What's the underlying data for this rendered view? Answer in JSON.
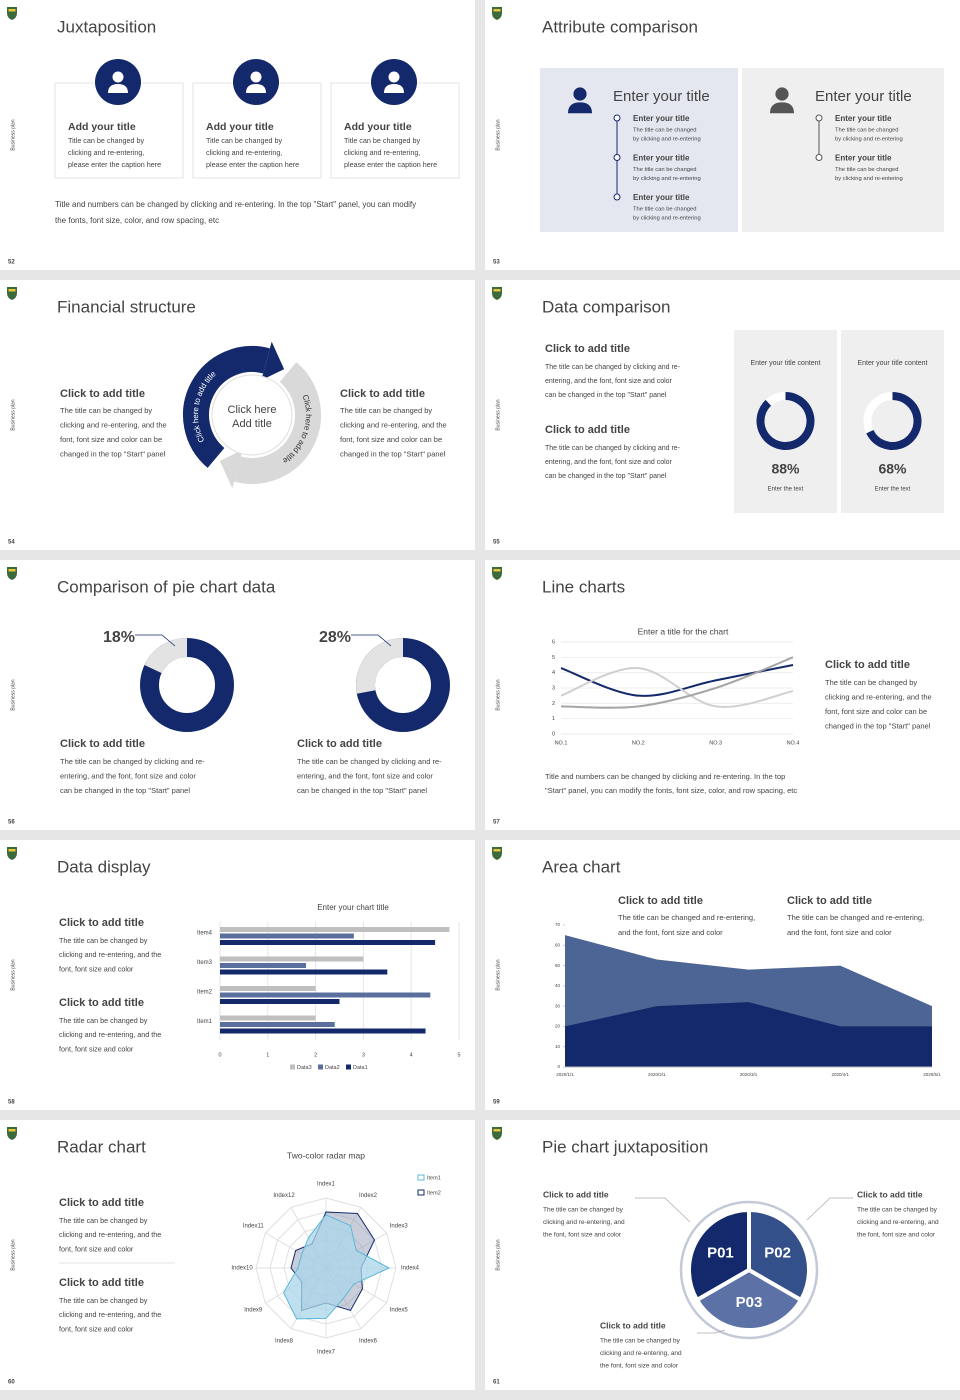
{
  "slides": [
    {
      "number": "52",
      "side_label": "Business plan",
      "title": "Juxtaposition",
      "cards": [
        {
          "title": "Add your title",
          "text": [
            "Title can be changed by",
            "clicking and re-entering,",
            "please enter the caption here"
          ]
        },
        {
          "title": "Add your title",
          "text": [
            "Title can be changed by",
            "clicking and re-entering,",
            "please enter the caption here"
          ]
        },
        {
          "title": "Add your title",
          "text": [
            "Title can be changed by",
            "clicking and re-entering,",
            "please enter the caption here"
          ]
        }
      ],
      "footer": [
        "Title and numbers can be changed by clicking and re-entering. In the top \"Start\" panel, you can modify",
        "the fonts, font size, color, and row spacing, etc"
      ]
    },
    {
      "number": "53",
      "side_label": "Business plan",
      "title": "Attribute comparison",
      "panels": [
        {
          "title": "Enter your title",
          "items": [
            {
              "title": "Enter your title",
              "text": [
                "The title can be changed",
                "by clicking and re-entering"
              ]
            },
            {
              "title": "Enter your title",
              "text": [
                "The title can be changed",
                "by clicking and re-entering"
              ]
            },
            {
              "title": "Enter your title",
              "text": [
                "The title can be changed",
                "by clicking and re-entering"
              ]
            }
          ]
        },
        {
          "title": "Enter your title",
          "items": [
            {
              "title": "Enter your title",
              "text": [
                "The title can be changed",
                "by clicking and re-entering"
              ]
            },
            {
              "title": "Enter your title",
              "text": [
                "The title can be changed",
                "by clicking and re-entering"
              ]
            }
          ]
        }
      ]
    },
    {
      "number": "54",
      "side_label": "Business plan",
      "title": "Financial structure",
      "blocks": [
        {
          "title": "Click to add title",
          "text": [
            "The title can be changed by",
            "clicking and re-entering, and the",
            "font, font size and color can be",
            "changed in the top \"Start\" panel"
          ]
        },
        {
          "title": "Click to add title",
          "text": [
            "The title can be changed by",
            "clicking and re-entering, and the",
            "font, font size and color can be",
            "changed in the top \"Start\" panel"
          ]
        }
      ],
      "cycle": {
        "center": [
          "Click here",
          "Add title"
        ],
        "arc_labels": [
          "Click here to add title",
          "Click here to add title"
        ]
      }
    },
    {
      "number": "55",
      "side_label": "Business plan",
      "title": "Data comparison",
      "blocks": [
        {
          "title": "Click to add title",
          "text": [
            "The title can be changed by clicking and re-",
            "entering, and the font, font size and color",
            "can be changed in the top \"Start\" panel"
          ]
        },
        {
          "title": "Click to add title",
          "text": [
            "The title can be changed by clicking and re-",
            "entering, and the font, font size and color",
            "can be changed in the top \"Start\" panel"
          ]
        }
      ],
      "cards": [
        {
          "heading": "Enter your title content",
          "value": 88,
          "value_label": "88%",
          "caption": "Enter the text"
        },
        {
          "heading": "Enter your title content",
          "value": 68,
          "value_label": "68%",
          "caption": "Enter the text"
        }
      ]
    },
    {
      "number": "56",
      "side_label": "Business plan",
      "title": "Comparison of pie chart data",
      "donuts": [
        {
          "value": 18,
          "value_label": "18%"
        },
        {
          "value": 28,
          "value_label": "28%"
        }
      ],
      "blocks": [
        {
          "title": "Click to add title",
          "text": [
            "The title can be changed by clicking and re-",
            "entering, and the font, font size and color",
            "can be changed in the top \"Start\" panel"
          ]
        },
        {
          "title": "Click to add title",
          "text": [
            "The title can be changed by clicking and re-",
            "entering, and the font, font size and color",
            "can be changed in the top \"Start\" panel"
          ]
        }
      ]
    },
    {
      "number": "57",
      "side_label": "Business plan",
      "title": "Line charts",
      "chart": {
        "type": "line",
        "title": "Enter a title for the chart",
        "categories": [
          "NO.1",
          "NO.2",
          "NO.3",
          "NO.4"
        ],
        "series": [
          {
            "color": "#13296b",
            "values": [
              4.3,
              2.5,
              3.5,
              4.5
            ]
          },
          {
            "color": "#d0d0d0",
            "values": [
              2.5,
              4.3,
              1.8,
              2.8
            ]
          },
          {
            "color": "#a6a6a6",
            "values": [
              1.8,
              1.8,
              3.0,
              5.0
            ]
          }
        ],
        "ylim": [
          0,
          6
        ],
        "yticks": [
          0,
          1,
          2,
          3,
          4,
          5,
          6
        ]
      },
      "block": {
        "title": "Click to add title",
        "text": [
          "The title can be changed by",
          "clicking and re-entering, and the",
          "font, font size and color can be",
          "changed in the top \"Start\" panel"
        ]
      },
      "footer": [
        "Title and numbers can be changed by clicking and re-entering. In the top",
        "\"Start\" panel, you can modify the fonts, font size, color, and row spacing, etc"
      ]
    },
    {
      "number": "58",
      "side_label": "Business plan",
      "title": "Data display",
      "blocks": [
        {
          "title": "Click to add title",
          "text": [
            "The title can be changed by",
            "clicking and re-entering, and the",
            "font, font size and color"
          ]
        },
        {
          "title": "Click to add title",
          "text": [
            "The title can be changed by",
            "clicking and re-entering, and the",
            "font, font size and color"
          ]
        }
      ],
      "chart": {
        "type": "bar",
        "orientation": "horizontal",
        "title": "Enter your chart title",
        "categories": [
          "Item1",
          "Item2",
          "Item3",
          "Item4"
        ],
        "series": [
          {
            "name": "Data1",
            "color": "#13296b",
            "values": [
              4.3,
              2.5,
              3.5,
              4.5
            ]
          },
          {
            "name": "Data2",
            "color": "#5b6f9e",
            "values": [
              2.4,
              4.4,
              1.8,
              2.8
            ]
          },
          {
            "name": "Data3",
            "color": "#bfbfbf",
            "values": [
              2.0,
              2.0,
              3.0,
              4.8
            ]
          }
        ],
        "xlim": [
          0,
          5
        ],
        "xticks": [
          0,
          1,
          2,
          3,
          4,
          5
        ]
      }
    },
    {
      "number": "59",
      "side_label": "Business plan",
      "title": "Area chart",
      "blocks": [
        {
          "title": "Click to add title",
          "text": [
            "The title can be changed and re-entering,",
            "and the font, font size and color"
          ]
        },
        {
          "title": "Click to add title",
          "text": [
            "The title can be changed and re-entering,",
            "and the font, font size and color"
          ]
        }
      ],
      "chart": {
        "type": "area",
        "categories": [
          "2020/1/1",
          "2020/2/1",
          "2020/3/1",
          "2020/4/1",
          "2020/5/1"
        ],
        "series": [
          {
            "color": "#4d6594",
            "values": [
              65,
              53,
              48,
              50,
              30
            ]
          },
          {
            "color": "#13296b",
            "values": [
              20,
              30,
              32,
              20,
              20
            ]
          }
        ],
        "ylim": [
          0,
          70
        ],
        "yticks": [
          0,
          10,
          20,
          30,
          40,
          50,
          60,
          70
        ]
      }
    },
    {
      "number": "60",
      "side_label": "Business plan",
      "title": "Radar chart",
      "blocks": [
        {
          "title": "Click to add title",
          "text": [
            "The title can be changed by",
            "clicking and re-entering, and the",
            "font, font size and color"
          ]
        },
        {
          "title": "Click to add title",
          "text": [
            "The title can be changed by",
            "clicking and re-entering, and the",
            "font, font size and color"
          ]
        }
      ],
      "chart": {
        "type": "radar",
        "title": "Two-color radar map",
        "categories": [
          "Index1",
          "Index2",
          "Index3",
          "Index4",
          "Index5",
          "Index6",
          "Index7",
          "Index8",
          "Index9",
          "Index10",
          "Index11",
          "Index12"
        ],
        "series": [
          {
            "name": "Item1",
            "color": "#5bb8d8",
            "values": [
              3.8,
              3.5,
              2.5,
              4.5,
              2.3,
              2.5,
              3.6,
              4.2,
              3.5,
              2.0,
              2.0,
              2.5
            ]
          },
          {
            "name": "Item2",
            "color": "#13296b",
            "values": [
              4.0,
              4.5,
              4.0,
              2.5,
              3.0,
              3.5,
              2.5,
              3.5,
              2.0,
              2.5,
              2.5,
              2.0
            ]
          }
        ],
        "rlim": [
          0,
          5
        ]
      }
    },
    {
      "number": "61",
      "side_label": "Business plan",
      "title": "Pie chart juxtaposition",
      "blocks": [
        {
          "title": "Click to add title",
          "text": [
            "The title can be changed by",
            "clicking and re-entering, and",
            "the font, font size and color"
          ]
        },
        {
          "title": "Click to add title",
          "text": [
            "The title can be changed by",
            "clicking and re-entering, and",
            "the font, font size and color"
          ]
        },
        {
          "title": "Click to add title",
          "text": [
            "The title can be changed by",
            "clicking and re-entering, and",
            "the font, font size and color"
          ]
        }
      ],
      "pie": {
        "labels": [
          "P01",
          "P02",
          "P03"
        ],
        "colors": [
          "#13296b",
          "#34508a",
          "#5c72a6"
        ]
      }
    }
  ]
}
